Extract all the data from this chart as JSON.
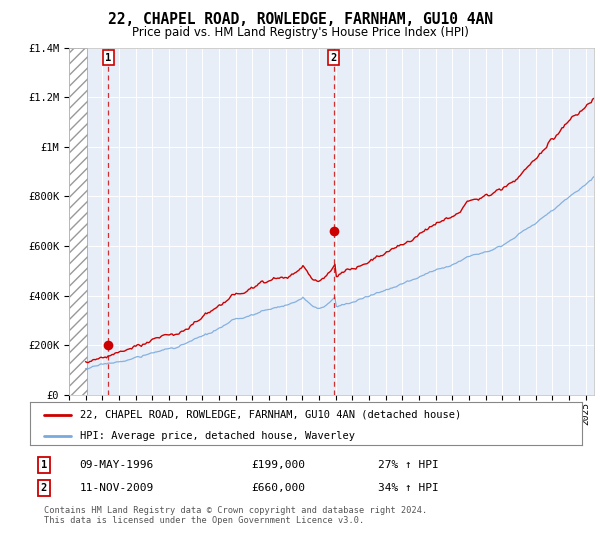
{
  "title": "22, CHAPEL ROAD, ROWLEDGE, FARNHAM, GU10 4AN",
  "subtitle": "Price paid vs. HM Land Registry's House Price Index (HPI)",
  "title_fontsize": 10.5,
  "subtitle_fontsize": 8.5,
  "xmin": 1994.0,
  "xmax": 2025.5,
  "ymin": 0,
  "ymax": 1400000,
  "yticks": [
    0,
    200000,
    400000,
    600000,
    800000,
    1000000,
    1200000,
    1400000
  ],
  "ytick_labels": [
    "£0",
    "£200K",
    "£400K",
    "£600K",
    "£800K",
    "£1M",
    "£1.2M",
    "£1.4M"
  ],
  "sale1_x": 1996.36,
  "sale1_y": 199000,
  "sale2_x": 2009.87,
  "sale2_y": 660000,
  "hatch_end": 1995.08,
  "line_color_red": "#cc0000",
  "line_color_blue": "#7aaadd",
  "background_color": "#e8eef8",
  "legend_line1": "22, CHAPEL ROAD, ROWLEDGE, FARNHAM, GU10 4AN (detached house)",
  "legend_line2": "HPI: Average price, detached house, Waverley",
  "ann1_label": "1",
  "ann1_date": "09-MAY-1996",
  "ann1_price": "£199,000",
  "ann1_hpi": "27% ↑ HPI",
  "ann2_label": "2",
  "ann2_date": "11-NOV-2009",
  "ann2_price": "£660,000",
  "ann2_hpi": "34% ↑ HPI",
  "footer": "Contains HM Land Registry data © Crown copyright and database right 2024.\nThis data is licensed under the Open Government Licence v3.0."
}
